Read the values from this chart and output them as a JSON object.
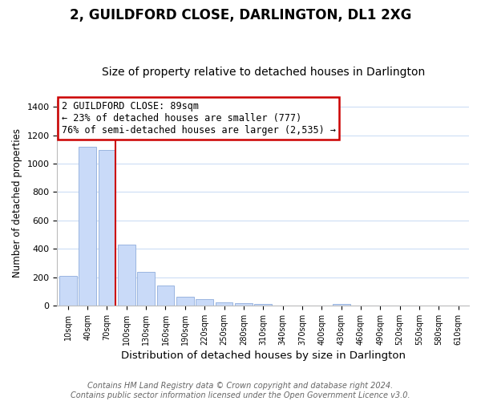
{
  "title": "2, GUILDFORD CLOSE, DARLINGTON, DL1 2XG",
  "subtitle": "Size of property relative to detached houses in Darlington",
  "xlabel": "Distribution of detached houses by size in Darlington",
  "ylabel": "Number of detached properties",
  "bin_labels": [
    "10sqm",
    "40sqm",
    "70sqm",
    "100sqm",
    "130sqm",
    "160sqm",
    "190sqm",
    "220sqm",
    "250sqm",
    "280sqm",
    "310sqm",
    "340sqm",
    "370sqm",
    "400sqm",
    "430sqm",
    "460sqm",
    "490sqm",
    "520sqm",
    "550sqm",
    "580sqm",
    "610sqm"
  ],
  "bar_heights": [
    210,
    1120,
    1095,
    430,
    240,
    140,
    60,
    47,
    22,
    15,
    10,
    0,
    0,
    0,
    9,
    0,
    0,
    0,
    0,
    0,
    0
  ],
  "bar_color": "#c9daf8",
  "bar_edge_color": "#9ab5e0",
  "annotation_text_line1": "2 GUILDFORD CLOSE: 89sqm",
  "annotation_text_line2": "← 23% of detached houses are smaller (777)",
  "annotation_text_line3": "76% of semi-detached houses are larger (2,535) →",
  "annotation_box_color": "#ffffff",
  "annotation_box_edge_color": "#cc0000",
  "vline_color": "#cc0000",
  "ylim": [
    0,
    1450
  ],
  "yticks": [
    0,
    200,
    400,
    600,
    800,
    1000,
    1200,
    1400
  ],
  "background_color": "#ffffff",
  "grid_color": "#ccddf5",
  "footer_text": "Contains HM Land Registry data © Crown copyright and database right 2024.\nContains public sector information licensed under the Open Government Licence v3.0.",
  "title_fontsize": 12,
  "subtitle_fontsize": 10,
  "xlabel_fontsize": 9.5,
  "ylabel_fontsize": 8.5,
  "footer_fontsize": 7,
  "tick_fontsize": 8,
  "xtick_fontsize": 7
}
